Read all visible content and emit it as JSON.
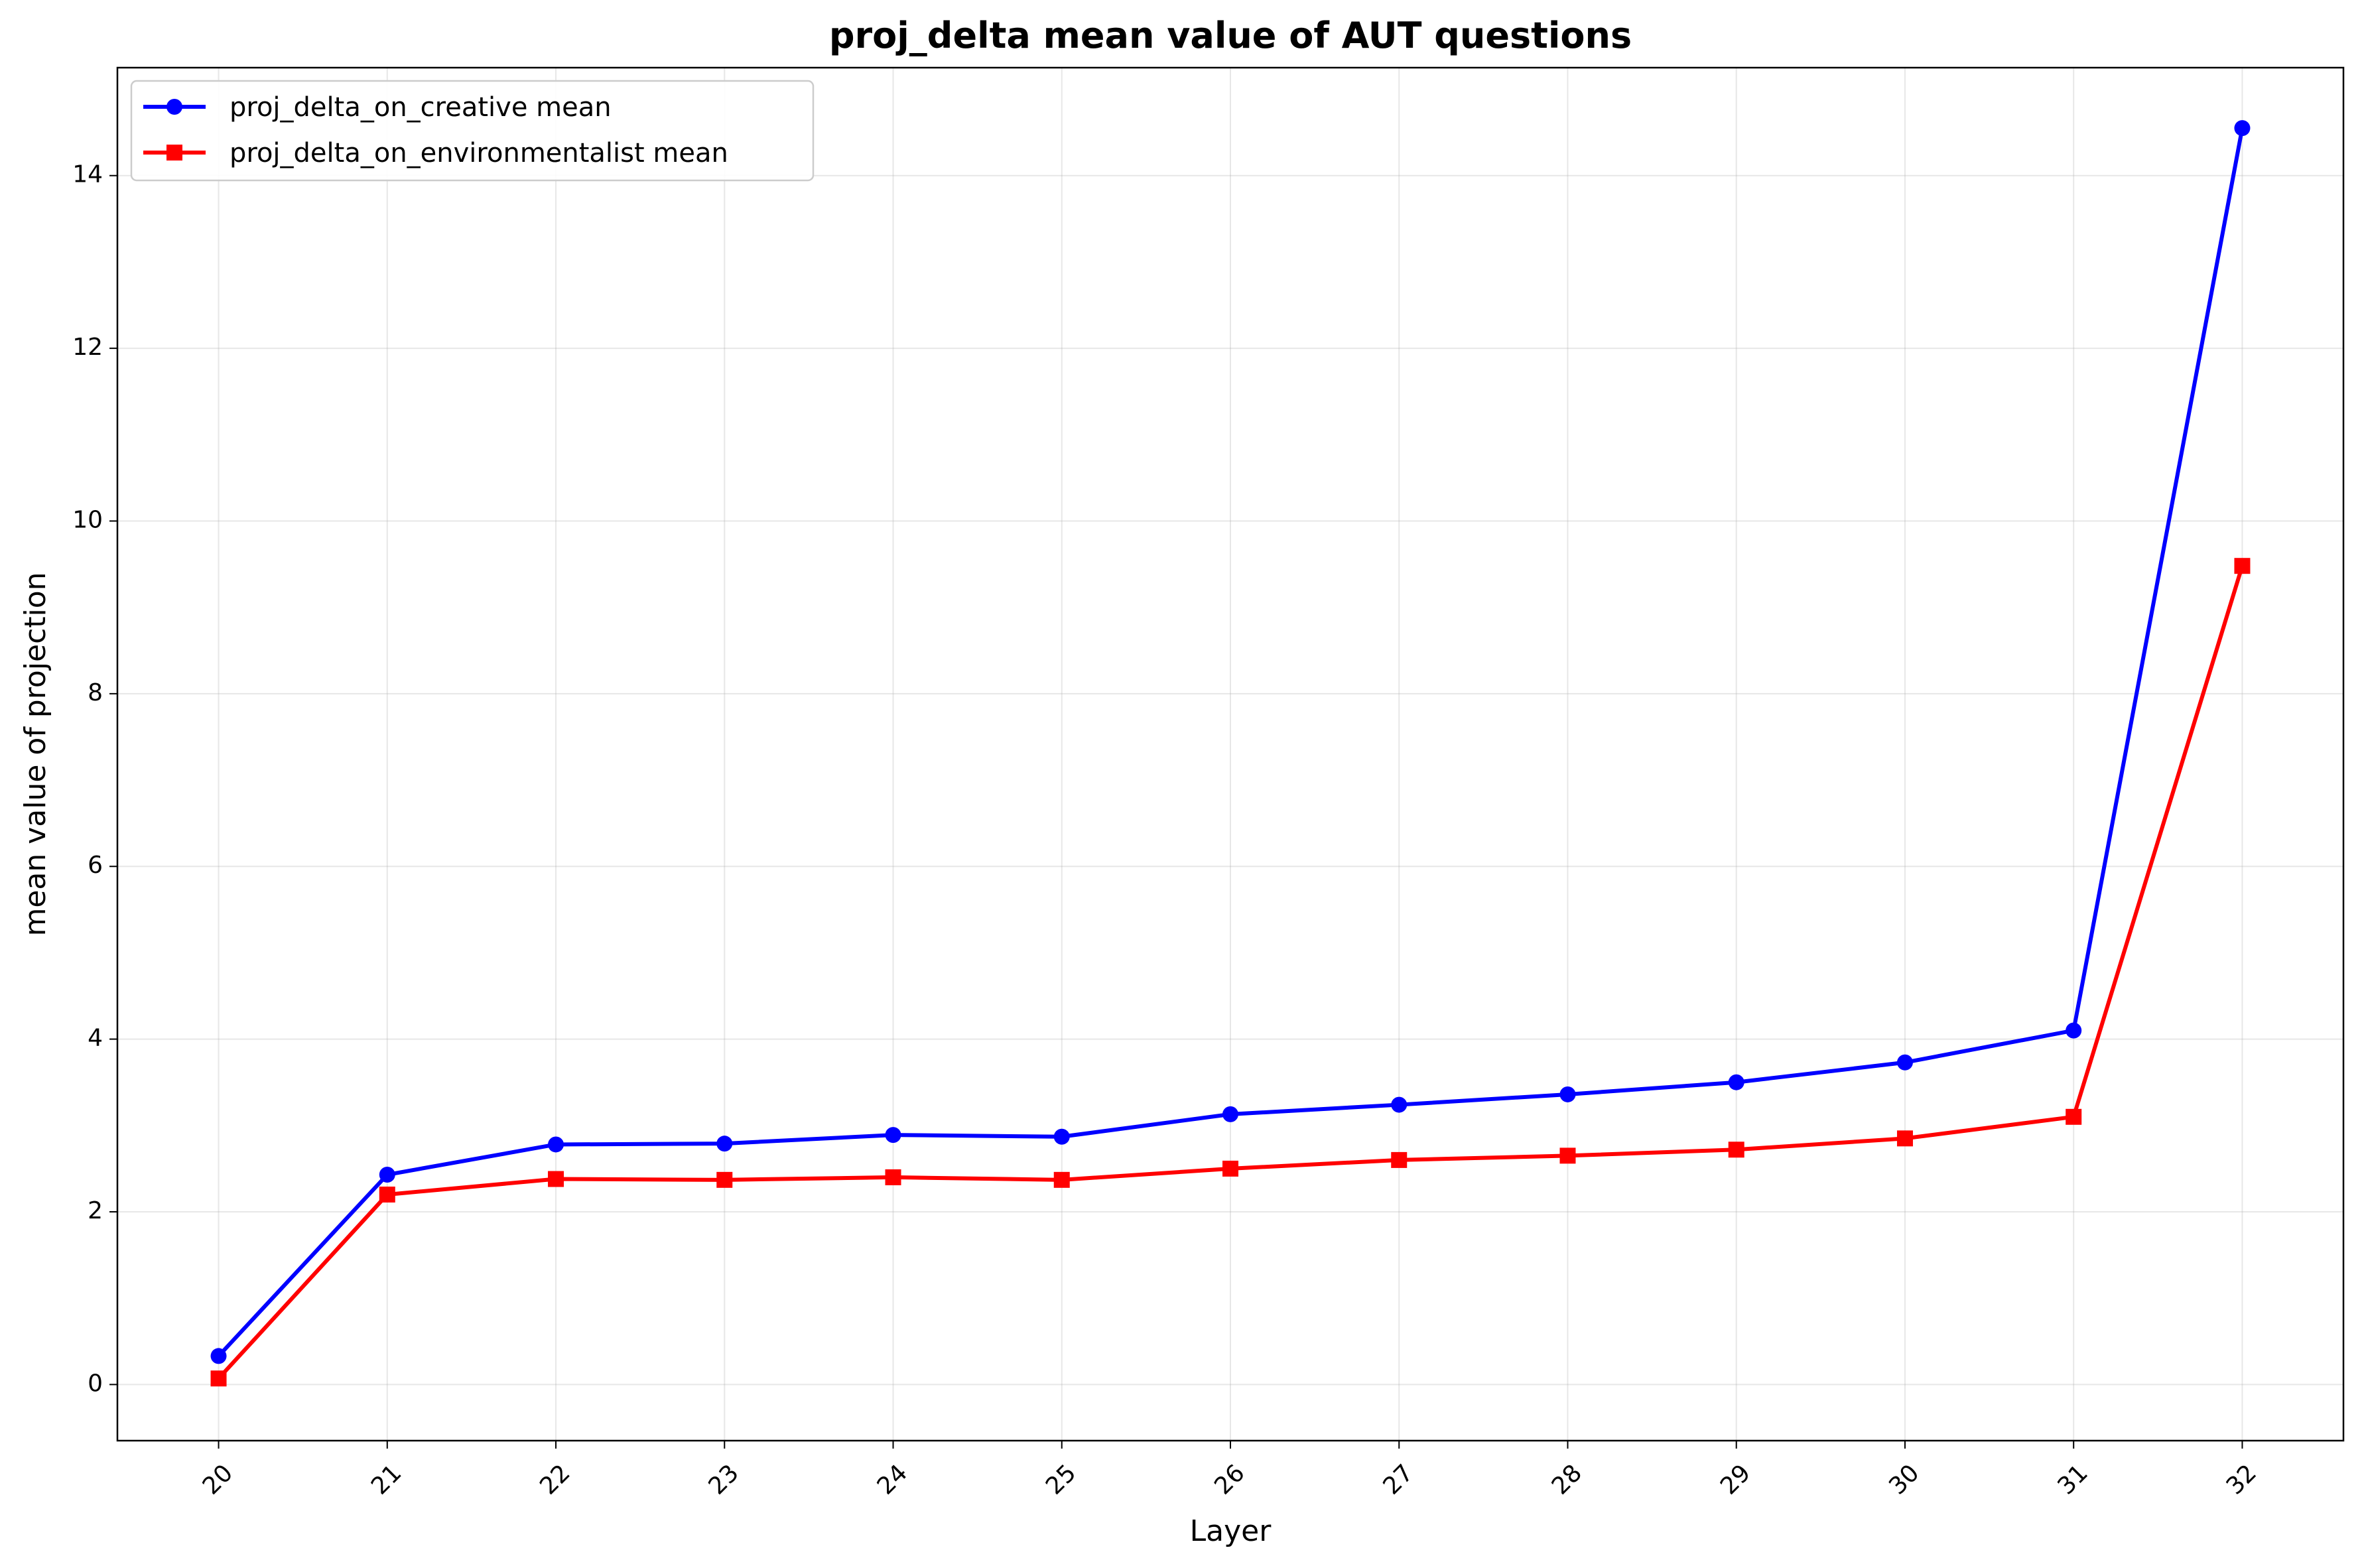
{
  "chart_data": {
    "type": "line",
    "title": "proj_delta mean value of AUT questions",
    "xlabel": "Layer",
    "ylabel": "mean value of projection",
    "x": [
      20,
      21,
      22,
      23,
      24,
      25,
      26,
      27,
      28,
      29,
      30,
      31,
      32
    ],
    "x_tick_labels": [
      "20",
      "21",
      "22",
      "23",
      "24",
      "25",
      "26",
      "27",
      "28",
      "29",
      "30",
      "31",
      "32"
    ],
    "y_ticks": [
      0,
      2,
      4,
      6,
      8,
      10,
      12,
      14
    ],
    "y_tick_labels": [
      "0",
      "2",
      "4",
      "6",
      "8",
      "10",
      "12",
      "14"
    ],
    "xlim": [
      19.4,
      32.6
    ],
    "ylim": [
      -0.65,
      15.25
    ],
    "grid": true,
    "legend_position": "top-left",
    "series": [
      {
        "name": "proj_delta_on_creative mean",
        "color": "#0000ff",
        "marker": "circle",
        "values": [
          0.33,
          2.43,
          2.78,
          2.79,
          2.89,
          2.87,
          3.13,
          3.24,
          3.36,
          3.5,
          3.73,
          4.1,
          14.55
        ]
      },
      {
        "name": "proj_delta_on_environmentalist mean",
        "color": "#ff0000",
        "marker": "square",
        "values": [
          0.07,
          2.2,
          2.38,
          2.37,
          2.4,
          2.37,
          2.5,
          2.6,
          2.65,
          2.72,
          2.85,
          3.1,
          9.48
        ]
      }
    ]
  }
}
